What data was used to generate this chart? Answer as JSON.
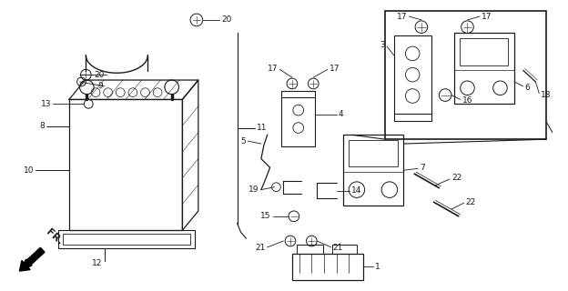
{
  "bg_color": "#ffffff",
  "line_color": "#1a1a1a",
  "fig_width": 6.24,
  "fig_height": 3.2,
  "dpi": 100,
  "font_size": 6.5,
  "font_size_fr": 8.0
}
